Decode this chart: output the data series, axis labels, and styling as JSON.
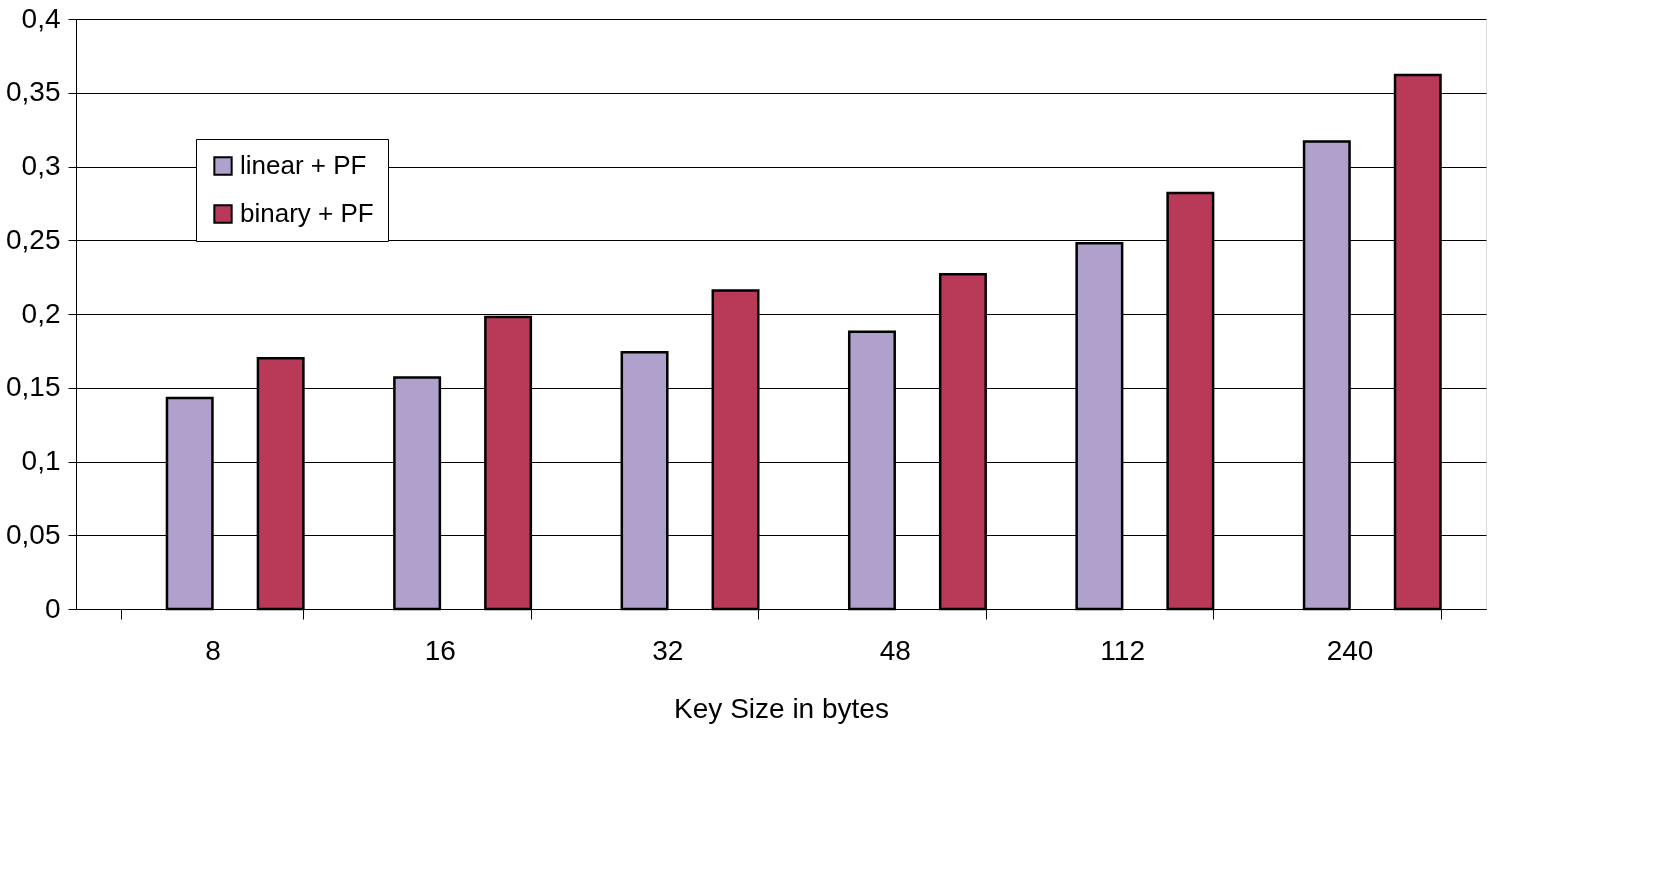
{
  "chart_data": {
    "type": "bar",
    "xlabel": "Key Size in bytes",
    "categories": [
      "8",
      "16",
      "32",
      "48",
      "112",
      "240"
    ],
    "series": [
      {
        "name": "linear + PF",
        "color": "#b0a0cc",
        "values": [
          0.143,
          0.157,
          0.174,
          0.188,
          0.248,
          0.317
        ]
      },
      {
        "name": "binary + PF",
        "color": "#b83a58",
        "values": [
          0.17,
          0.198,
          0.216,
          0.227,
          0.282,
          0.362
        ]
      }
    ],
    "ylim": [
      0,
      0.4
    ],
    "yticks": [
      {
        "value": 0,
        "label": "0"
      },
      {
        "value": 0.05,
        "label": "0,05"
      },
      {
        "value": 0.1,
        "label": "0,1"
      },
      {
        "value": 0.15,
        "label": "0,15"
      },
      {
        "value": 0.2,
        "label": "0,2"
      },
      {
        "value": 0.25,
        "label": "0,25"
      },
      {
        "value": 0.3,
        "label": "0,3"
      },
      {
        "value": 0.35,
        "label": "0,35"
      },
      {
        "value": 0.4,
        "label": "0,4"
      }
    ],
    "grid": "y",
    "legend": "top left"
  }
}
